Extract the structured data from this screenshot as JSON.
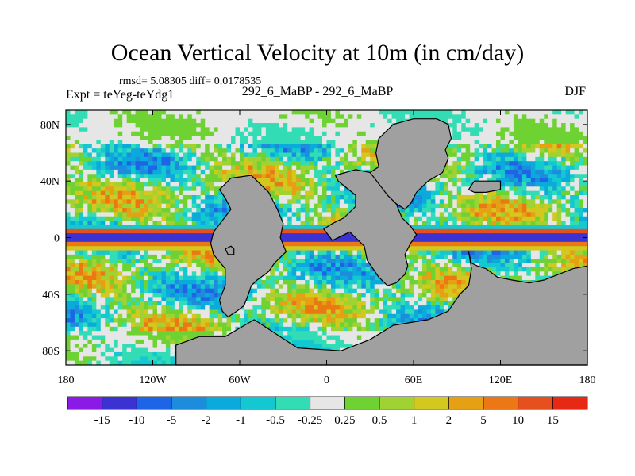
{
  "chart_data": {
    "type": "heatmap",
    "title": "Ocean Vertical Velocity at 10m (in cm/day)",
    "left_title": "Expt = teYeg-teYdg1",
    "center_title": "292_6_MaBP - 292_6_MaBP",
    "right_title": "DJF",
    "stats_text": "rmsd= 5.08305 diff= 0.0178535",
    "x_ticks": [
      "180",
      "120W",
      "60W",
      "0",
      "60E",
      "120E",
      "180"
    ],
    "y_ticks": [
      "80N",
      "40N",
      "0",
      "40S",
      "80S"
    ],
    "xlim": [
      -180,
      180
    ],
    "ylim": [
      -90,
      90
    ],
    "colorbar": {
      "labels": [
        "-15",
        "-10",
        "-5",
        "-2",
        "-1",
        "-0.5",
        "-0.25",
        "0.25",
        "0.5",
        "1",
        "2",
        "5",
        "10",
        "15"
      ],
      "colors": [
        "#8b1ae6",
        "#3c32d2",
        "#1e64e6",
        "#1e8cdc",
        "#0aaadc",
        "#14c8d2",
        "#32dcb4",
        "#e6e6e6",
        "#6ed232",
        "#a0d232",
        "#d2c81e",
        "#e6a014",
        "#eb7814",
        "#e6501e",
        "#e62814"
      ]
    },
    "land_color": "#a0a0a0"
  }
}
